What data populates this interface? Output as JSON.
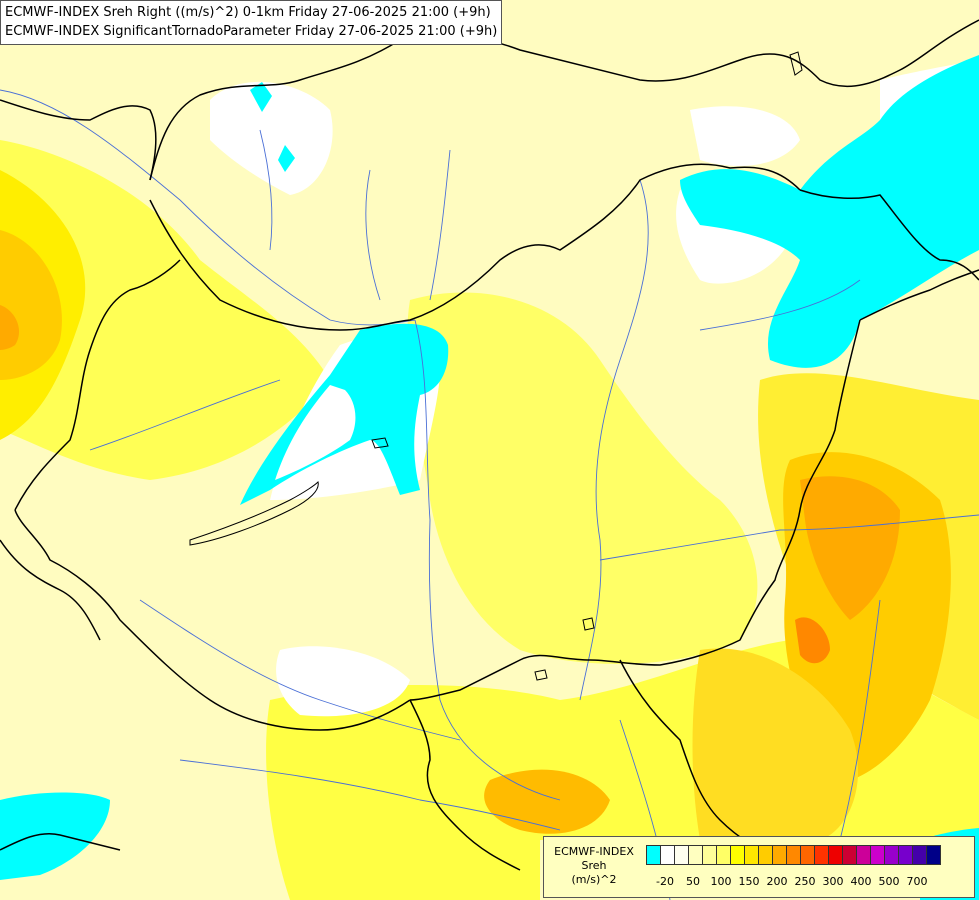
{
  "titles": {
    "line1": "ECMWF-INDEX Sreh Right ((m/s)^2) 0-1km Friday 27-06-2025 21:00 (+9h)",
    "line2": "ECMWF-INDEX SignificantTornadoParameter Friday 27-06-2025 21:00 (+9h)"
  },
  "legend": {
    "source": "ECMWF-INDEX",
    "variable": "Sreh",
    "unit": "(m/s)^2",
    "colors": [
      "#00ffff",
      "#ffffff",
      "#fffff0",
      "#ffffc0",
      "#ffff99",
      "#ffff66",
      "#ffff00",
      "#ffe600",
      "#ffcc00",
      "#ffaa00",
      "#ff8800",
      "#ff6600",
      "#ff3300",
      "#ee0000",
      "#cc0033",
      "#cc0099",
      "#cc00cc",
      "#9900cc",
      "#7700cc",
      "#4400aa",
      "#000088"
    ],
    "ticks": [
      "-20",
      "50",
      "100",
      "150",
      "200",
      "250",
      "300",
      "400",
      "500",
      "700"
    ]
  },
  "map_colors": {
    "background": "#fffcc0",
    "pale_yellow": "#ffff99",
    "yellow": "#ffff44",
    "bright_yellow": "#ffee00",
    "gold": "#ffcc00",
    "orange": "#ffaa00",
    "dark_orange": "#ff8800",
    "cyan": "#00ffff",
    "white": "#ffffff"
  }
}
